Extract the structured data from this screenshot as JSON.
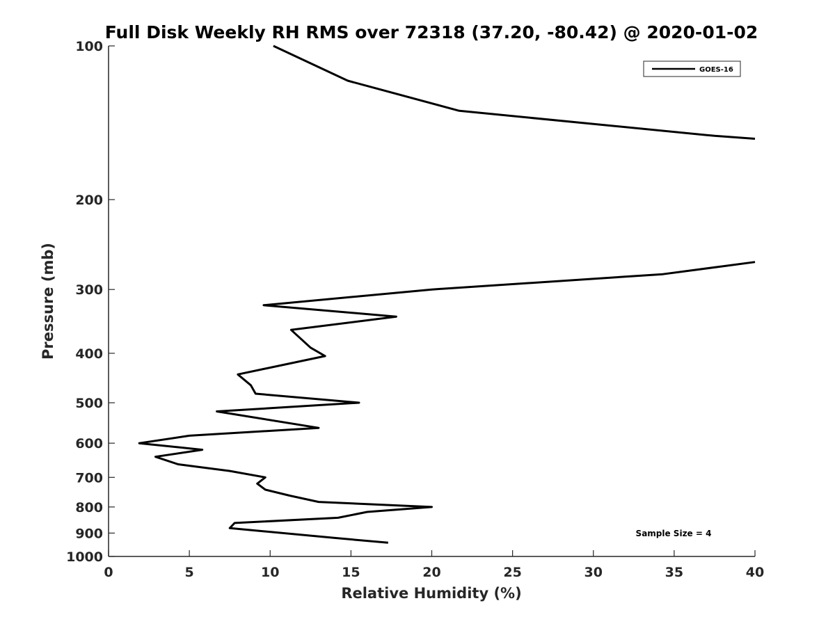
{
  "chart_data": {
    "type": "line",
    "title": "Full Disk Weekly RH RMS over 72318 (37.20, -80.42) @ 2020-01-02",
    "xlabel": "Relative Humidity (%)",
    "ylabel": "Pressure (mb)",
    "xlim": [
      0,
      40
    ],
    "ylim": [
      1000,
      100
    ],
    "yscale": "log",
    "y_reversed": true,
    "x_ticks": [
      0,
      5,
      10,
      15,
      20,
      25,
      30,
      35,
      40
    ],
    "x_tick_labels": [
      "0",
      "5",
      "10",
      "15",
      "20",
      "25",
      "30",
      "35",
      "40"
    ],
    "y_ticks": [
      100,
      200,
      300,
      400,
      500,
      600,
      700,
      800,
      900,
      1000
    ],
    "y_tick_labels": [
      "100",
      "200",
      "300",
      "400",
      "500",
      "600",
      "700",
      "800",
      "900",
      "1000"
    ],
    "grid": false,
    "legend_position": "top-right",
    "annotation": "Sample Size = 4",
    "series": [
      {
        "name": "GOES-16",
        "color": "#000000",
        "segments": [
          {
            "points": [
              [
                10.2,
                100
              ],
              [
                14.8,
                117
              ],
              [
                21.7,
                134
              ],
              [
                37.5,
                150
              ],
              [
                40.0,
                152
              ]
            ]
          },
          {
            "points": [
              [
                40.0,
                265
              ],
              [
                34.3,
                280
              ],
              [
                20.0,
                300
              ],
              [
                9.6,
                322
              ],
              [
                17.8,
                339
              ],
              [
                11.3,
                360
              ],
              [
                12.5,
                390
              ],
              [
                13.4,
                405
              ],
              [
                8.0,
                440
              ],
              [
                8.8,
                462
              ],
              [
                9.1,
                480
              ],
              [
                15.5,
                500
              ],
              [
                6.7,
                520
              ],
              [
                13.0,
                560
              ],
              [
                5.0,
                580
              ],
              [
                1.9,
                600
              ],
              [
                5.8,
                618
              ],
              [
                2.9,
                638
              ],
              [
                4.3,
                660
              ],
              [
                7.5,
                680
              ],
              [
                9.7,
                700
              ],
              [
                9.2,
                720
              ],
              [
                9.7,
                740
              ],
              [
                11.2,
                760
              ],
              [
                13.0,
                782
              ],
              [
                20.0,
                800
              ],
              [
                16.0,
                818
              ],
              [
                14.2,
                840
              ],
              [
                7.8,
                860
              ],
              [
                7.5,
                880
              ],
              [
                14.0,
                920
              ],
              [
                17.3,
                940
              ]
            ]
          }
        ]
      }
    ]
  }
}
